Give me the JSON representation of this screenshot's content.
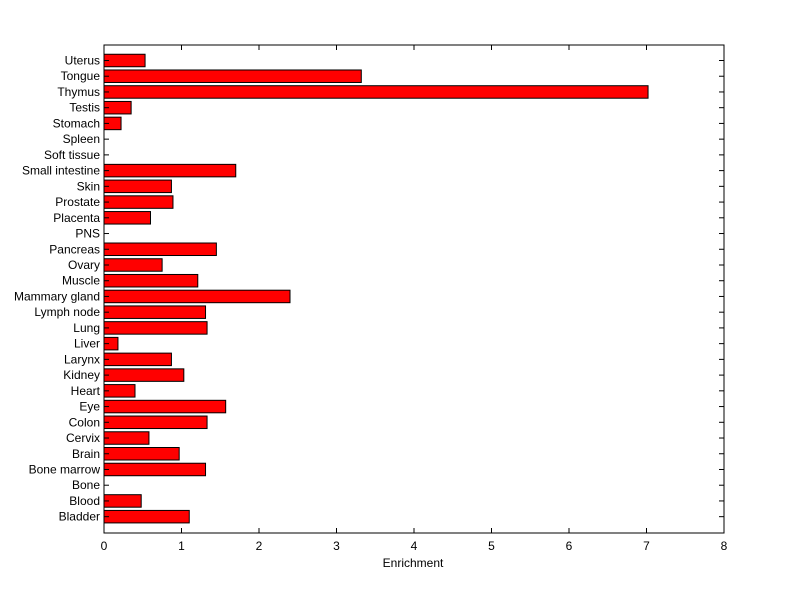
{
  "chart_data": {
    "type": "bar",
    "orientation": "horizontal",
    "title": "",
    "xlabel": "Enrichment",
    "ylabel": "",
    "xlim": [
      0,
      8
    ],
    "xticks": [
      0,
      1,
      2,
      3,
      4,
      5,
      6,
      7,
      8
    ],
    "grid": false,
    "legend": "none",
    "bar_color": "#ff0000",
    "categories": [
      "Uterus",
      "Tongue",
      "Thymus",
      "Testis",
      "Stomach",
      "Spleen",
      "Soft tissue",
      "Small intestine",
      "Skin",
      "Prostate",
      "Placenta",
      "PNS",
      "Pancreas",
      "Ovary",
      "Muscle",
      "Mammary gland",
      "Lymph node",
      "Lung",
      "Liver",
      "Larynx",
      "Kidney",
      "Heart",
      "Eye",
      "Colon",
      "Cervix",
      "Brain",
      "Bone marrow",
      "Bone",
      "Blood",
      "Bladder"
    ],
    "values": [
      0.53,
      3.32,
      7.02,
      0.35,
      0.22,
      0,
      0,
      1.7,
      0.87,
      0.89,
      0.6,
      0,
      1.45,
      0.75,
      1.21,
      2.4,
      1.31,
      1.33,
      0.18,
      0.87,
      1.03,
      0.4,
      1.57,
      1.33,
      0.58,
      0.97,
      1.31,
      0,
      0.48,
      1.1
    ]
  }
}
